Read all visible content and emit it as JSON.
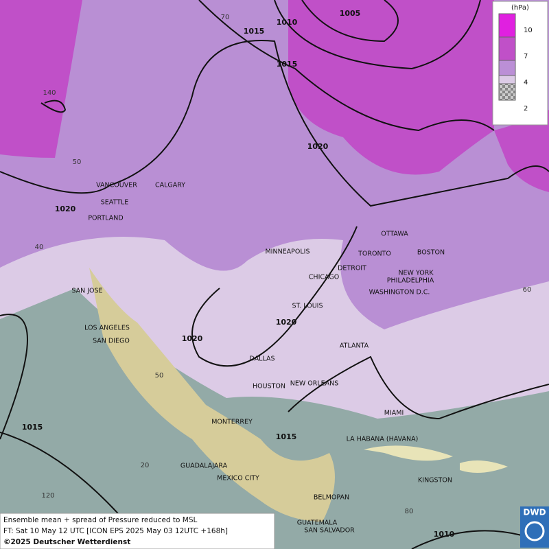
{
  "legend": {
    "unit": "(hPa)",
    "items": [
      {
        "label": "10",
        "color": "#e020e0"
      },
      {
        "label": "7",
        "color": "#c050c8"
      },
      {
        "label": "4",
        "color": "#bb8fd6"
      },
      {
        "label": "2",
        "color": "#dccbe6"
      }
    ]
  },
  "cities": [
    "VANCOUVER",
    "CALGARY",
    "SEATTLE",
    "PORTLAND",
    "MINNEAPOLIS",
    "TORONTO",
    "OTTAWA",
    "BOSTON",
    "DETROIT",
    "CHICAGO",
    "NEW YORK",
    "PHILADELPHIA",
    "WASHINGTON D.C.",
    "ST. LOUIS",
    "SAN JOSE",
    "LOS ANGELES",
    "SAN DIEGO",
    "DALLAS",
    "ATLANTA",
    "HOUSTON",
    "NEW ORLEANS",
    "MIAMI",
    "MONTERREY",
    "LA HABANA (HAVANA)",
    "GUADALAJARA",
    "MEXICO CITY",
    "KINGSTON",
    "BELMOPAN",
    "GUATEMALA",
    "SAN SALVADOR"
  ],
  "isobar_labels": [
    "1005",
    "1010",
    "1015",
    "1015",
    "1020",
    "1020",
    "1020",
    "1020",
    "1015",
    "1015",
    "1010"
  ],
  "graticule_labels": [
    "70",
    "140",
    "50",
    "40",
    "60",
    "50",
    "20",
    "120",
    "80"
  ],
  "caption": [
    "Ensemble mean + spread of Pressure reduced to MSL",
    "FT: Sat 10 May 12 UTC [ICON EPS 2025 May 03 12UTC +168h]",
    "©2025 Deutscher Wetterdienst"
  ],
  "logo": "DWD"
}
